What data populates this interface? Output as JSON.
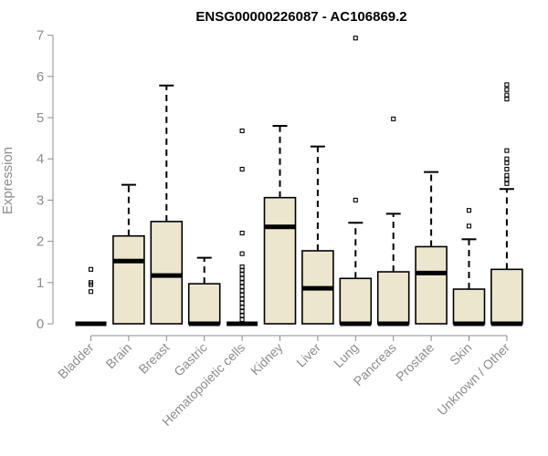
{
  "chart_data": {
    "type": "boxplot",
    "title": "ENSG00000226087 - AC106869.2",
    "xlabel": "",
    "ylabel": "Expression",
    "ylim": [
      0,
      7
    ],
    "yticks": [
      "0",
      "1",
      "2",
      "3",
      "4",
      "5",
      "6",
      "7"
    ],
    "grid": false,
    "legend": "none",
    "box_fill": "#ede6cf",
    "categories": [
      "Bladder",
      "Brain",
      "Breast",
      "Gastric",
      "Hematopoietic cells",
      "Kidney",
      "Liver",
      "Lung",
      "Pancreas",
      "Prostate",
      "Skin",
      "Unknown / Other"
    ],
    "boxes": [
      {
        "name": "Bladder",
        "q1": 0,
        "median": 0,
        "q3": 0,
        "whisker_low": 0,
        "whisker_high": 0,
        "outliers": [
          0.78,
          0.95,
          1.0,
          1.32
        ]
      },
      {
        "name": "Brain",
        "q1": 0,
        "median": 1.52,
        "q3": 2.13,
        "whisker_low": 0,
        "whisker_high": 3.37,
        "outliers": []
      },
      {
        "name": "Breast",
        "q1": 0,
        "median": 1.17,
        "q3": 2.48,
        "whisker_low": 0,
        "whisker_high": 5.78,
        "outliers": []
      },
      {
        "name": "Gastric",
        "q1": 0,
        "median": 0,
        "q3": 0.97,
        "whisker_low": 0,
        "whisker_high": 1.6,
        "outliers": []
      },
      {
        "name": "Hematopoietic cells",
        "q1": 0,
        "median": 0,
        "q3": 0,
        "whisker_low": 0,
        "whisker_high": 0,
        "outliers": [
          0.1,
          0.2,
          0.3,
          0.4,
          0.5,
          0.6,
          0.7,
          0.8,
          0.9,
          1.0,
          1.1,
          1.2,
          1.3,
          1.38,
          1.7,
          2.2,
          3.75,
          4.68
        ]
      },
      {
        "name": "Kidney",
        "q1": 0,
        "median": 2.35,
        "q3": 3.06,
        "whisker_low": 0,
        "whisker_high": 4.8,
        "outliers": []
      },
      {
        "name": "Liver",
        "q1": 0,
        "median": 0.86,
        "q3": 1.77,
        "whisker_low": 0,
        "whisker_high": 4.3,
        "outliers": []
      },
      {
        "name": "Lung",
        "q1": 0,
        "median": 0,
        "q3": 1.1,
        "whisker_low": 0,
        "whisker_high": 2.45,
        "outliers": [
          3.0,
          6.93
        ]
      },
      {
        "name": "Pancreas",
        "q1": 0,
        "median": 0,
        "q3": 1.26,
        "whisker_low": 0,
        "whisker_high": 2.67,
        "outliers": [
          4.97
        ]
      },
      {
        "name": "Prostate",
        "q1": 0,
        "median": 1.23,
        "q3": 1.87,
        "whisker_low": 0,
        "whisker_high": 3.68,
        "outliers": []
      },
      {
        "name": "Skin",
        "q1": 0,
        "median": 0,
        "q3": 0.84,
        "whisker_low": 0,
        "whisker_high": 2.05,
        "outliers": [
          2.37,
          2.75
        ]
      },
      {
        "name": "Unknown / Other",
        "q1": 0,
        "median": 0,
        "q3": 1.32,
        "whisker_low": 0,
        "whisker_high": 3.27,
        "outliers": [
          3.4,
          3.5,
          3.6,
          3.75,
          3.9,
          4.0,
          4.2,
          5.45,
          5.55,
          5.68,
          5.8
        ]
      }
    ]
  }
}
